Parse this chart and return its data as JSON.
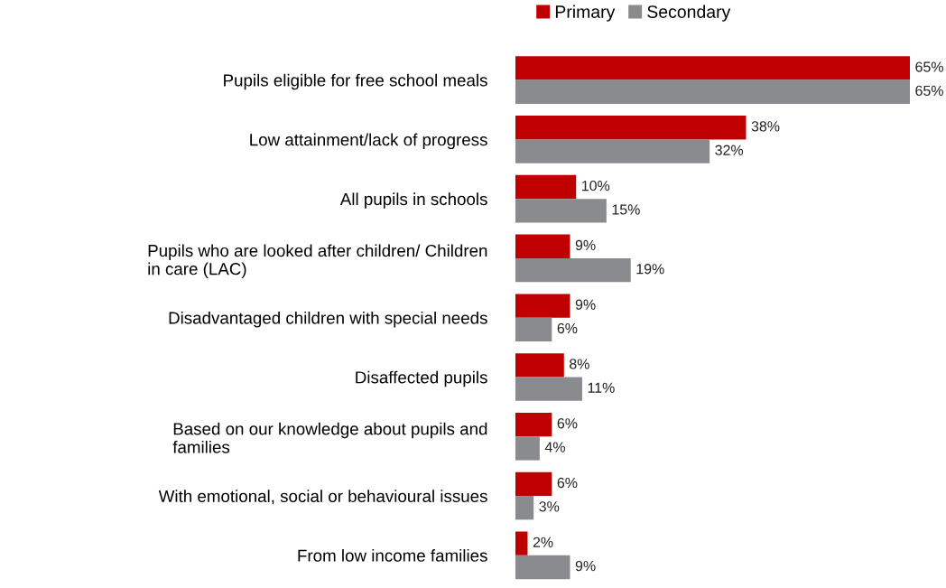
{
  "chart_data": {
    "type": "bar",
    "orientation": "horizontal",
    "categories": [
      "Pupils eligible for free school meals",
      "Low attainment/lack of progress",
      "All pupils in schools",
      "Pupils who are looked after children/ Children\nin care (LAC)",
      "Disadvantaged children with special needs",
      "Disaffected pupils",
      "Based on our knowledge about pupils and\nfamilies",
      "With emotional, social or behavioural issues",
      "From low income families"
    ],
    "series": [
      {
        "name": "Primary",
        "color": "#c00000",
        "values": [
          65,
          38,
          10,
          9,
          9,
          8,
          6,
          6,
          2
        ],
        "value_labels": [
          "65%",
          "38%",
          "10%",
          "9%",
          "9%",
          "8%",
          "6%",
          "6%",
          "2%"
        ]
      },
      {
        "name": "Secondary",
        "color": "#898b8e",
        "values": [
          65,
          32,
          15,
          19,
          6,
          11,
          4,
          3,
          9
        ],
        "value_labels": [
          "65%",
          "32%",
          "15%",
          "19%",
          "6%",
          "11%",
          "4%",
          "3%",
          "9%"
        ]
      }
    ],
    "xlim": [
      0,
      65
    ],
    "tick_labels": "y",
    "legend": "top",
    "grid": false
  }
}
